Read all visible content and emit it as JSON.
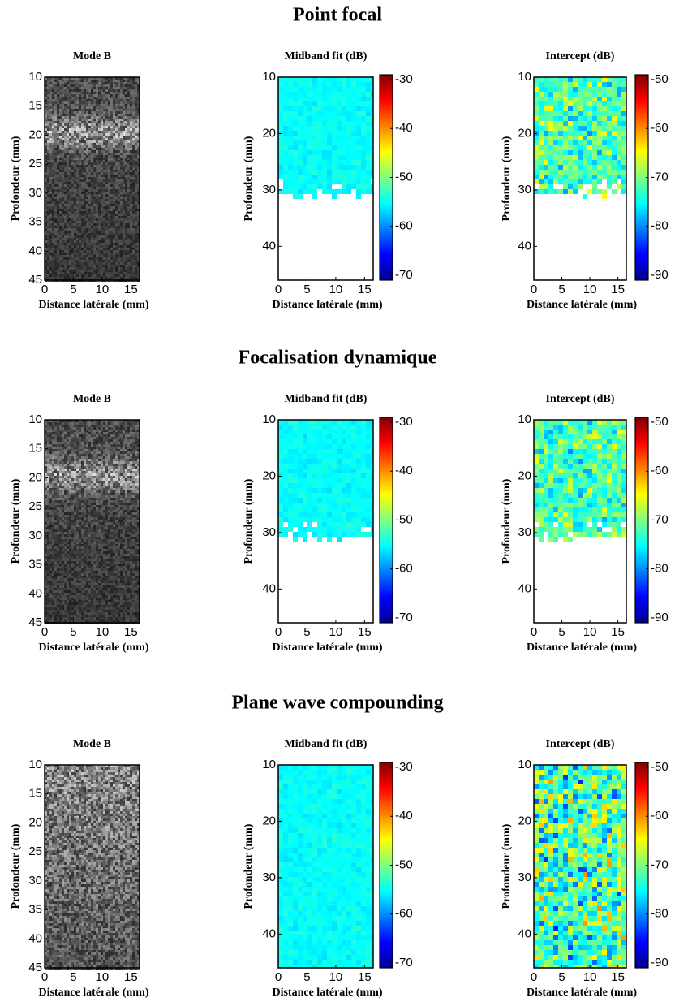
{
  "sections": [
    {
      "title": "Point focal",
      "panels": [
        {
          "title": "Mode B",
          "ylabel": "Profondeur (mm)",
          "xlabel": "Distance latérale (mm)",
          "xlim": [
            0,
            16.5
          ],
          "xticks": [
            0,
            5,
            10,
            15
          ],
          "ylim": [
            10,
            45
          ],
          "yticks": [
            10,
            15,
            20,
            25,
            30,
            35,
            40,
            45
          ]
        },
        {
          "title": "Midband fit (dB)",
          "ylabel": "Profondeur (mm)",
          "xlabel": "Distance latérale (mm)",
          "xlim": [
            0,
            16.5
          ],
          "xticks": [
            0,
            5,
            10,
            15
          ],
          "ylim": [
            10,
            46
          ],
          "yticks": [
            10,
            20,
            30,
            40
          ],
          "colorbar": {
            "lim": [
              -29,
              -71
            ],
            "ticks": [
              -30,
              -40,
              -50,
              -60,
              -70
            ]
          }
        },
        {
          "title": "Intercept (dB)",
          "ylabel": "Profondeur (mm)",
          "xlabel": "Distance latérale (mm)",
          "xlim": [
            0,
            16.5
          ],
          "xticks": [
            0,
            5,
            10,
            15
          ],
          "ylim": [
            10,
            46
          ],
          "yticks": [
            10,
            20,
            30,
            40
          ],
          "colorbar": {
            "lim": [
              -49,
              -91
            ],
            "ticks": [
              -50,
              -60,
              -70,
              -80,
              -90
            ]
          }
        }
      ]
    },
    {
      "title": "Focalisation dynamique",
      "panels": [
        {
          "title": "Mode B",
          "ylabel": "Profondeur (mm)",
          "xlabel": "Distance latérale (mm)",
          "xlim": [
            0,
            16.5
          ],
          "xticks": [
            0,
            5,
            10,
            15
          ],
          "ylim": [
            10,
            45
          ],
          "yticks": [
            10,
            15,
            20,
            25,
            30,
            35,
            40,
            45
          ]
        },
        {
          "title": "Midband fit (dB)",
          "ylabel": "Profondeur (mm)",
          "xlabel": "Distance latérale (mm)",
          "xlim": [
            0,
            16.5
          ],
          "xticks": [
            0,
            5,
            10,
            15
          ],
          "ylim": [
            10,
            46
          ],
          "yticks": [
            10,
            20,
            30,
            40
          ],
          "colorbar": {
            "lim": [
              -29,
              -71
            ],
            "ticks": [
              -30,
              -40,
              -50,
              -60,
              -70
            ]
          }
        },
        {
          "title": "Intercept (dB)",
          "ylabel": "Profondeur (mm)",
          "xlabel": "Distance latérale (mm)",
          "xlim": [
            0,
            16.5
          ],
          "xticks": [
            0,
            5,
            10,
            15
          ],
          "ylim": [
            10,
            46
          ],
          "yticks": [
            10,
            20,
            30,
            40
          ],
          "colorbar": {
            "lim": [
              -49,
              -91
            ],
            "ticks": [
              -50,
              -60,
              -70,
              -80,
              -90
            ]
          }
        }
      ]
    },
    {
      "title": "Plane wave compounding",
      "panels": [
        {
          "title": "Mode B",
          "ylabel": "Profondeur (mm)",
          "xlabel": "Distance latérale (mm)",
          "xlim": [
            0,
            16.5
          ],
          "xticks": [
            0,
            5,
            10,
            15
          ],
          "ylim": [
            10,
            45
          ],
          "yticks": [
            10,
            15,
            20,
            25,
            30,
            35,
            40,
            45
          ]
        },
        {
          "title": "Midband fit (dB)",
          "ylabel": "Profondeur (mm)",
          "xlabel": "Distance latérale (mm)",
          "xlim": [
            0,
            16.5
          ],
          "xticks": [
            0,
            5,
            10,
            15
          ],
          "ylim": [
            10,
            46
          ],
          "yticks": [
            10,
            20,
            30,
            40
          ],
          "colorbar": {
            "lim": [
              -29,
              -71
            ],
            "ticks": [
              -30,
              -40,
              -50,
              -60,
              -70
            ]
          }
        },
        {
          "title": "Intercept (dB)",
          "ylabel": "Profondeur (mm)",
          "xlabel": "Distance latérale (mm)",
          "xlim": [
            0,
            16.5
          ],
          "xticks": [
            0,
            5,
            10,
            15
          ],
          "ylim": [
            10,
            46
          ],
          "yticks": [
            10,
            20,
            30,
            40
          ],
          "colorbar": {
            "lim": [
              -49,
              -91
            ],
            "ticks": [
              -50,
              -60,
              -70,
              -80,
              -90
            ]
          }
        }
      ]
    }
  ]
}
